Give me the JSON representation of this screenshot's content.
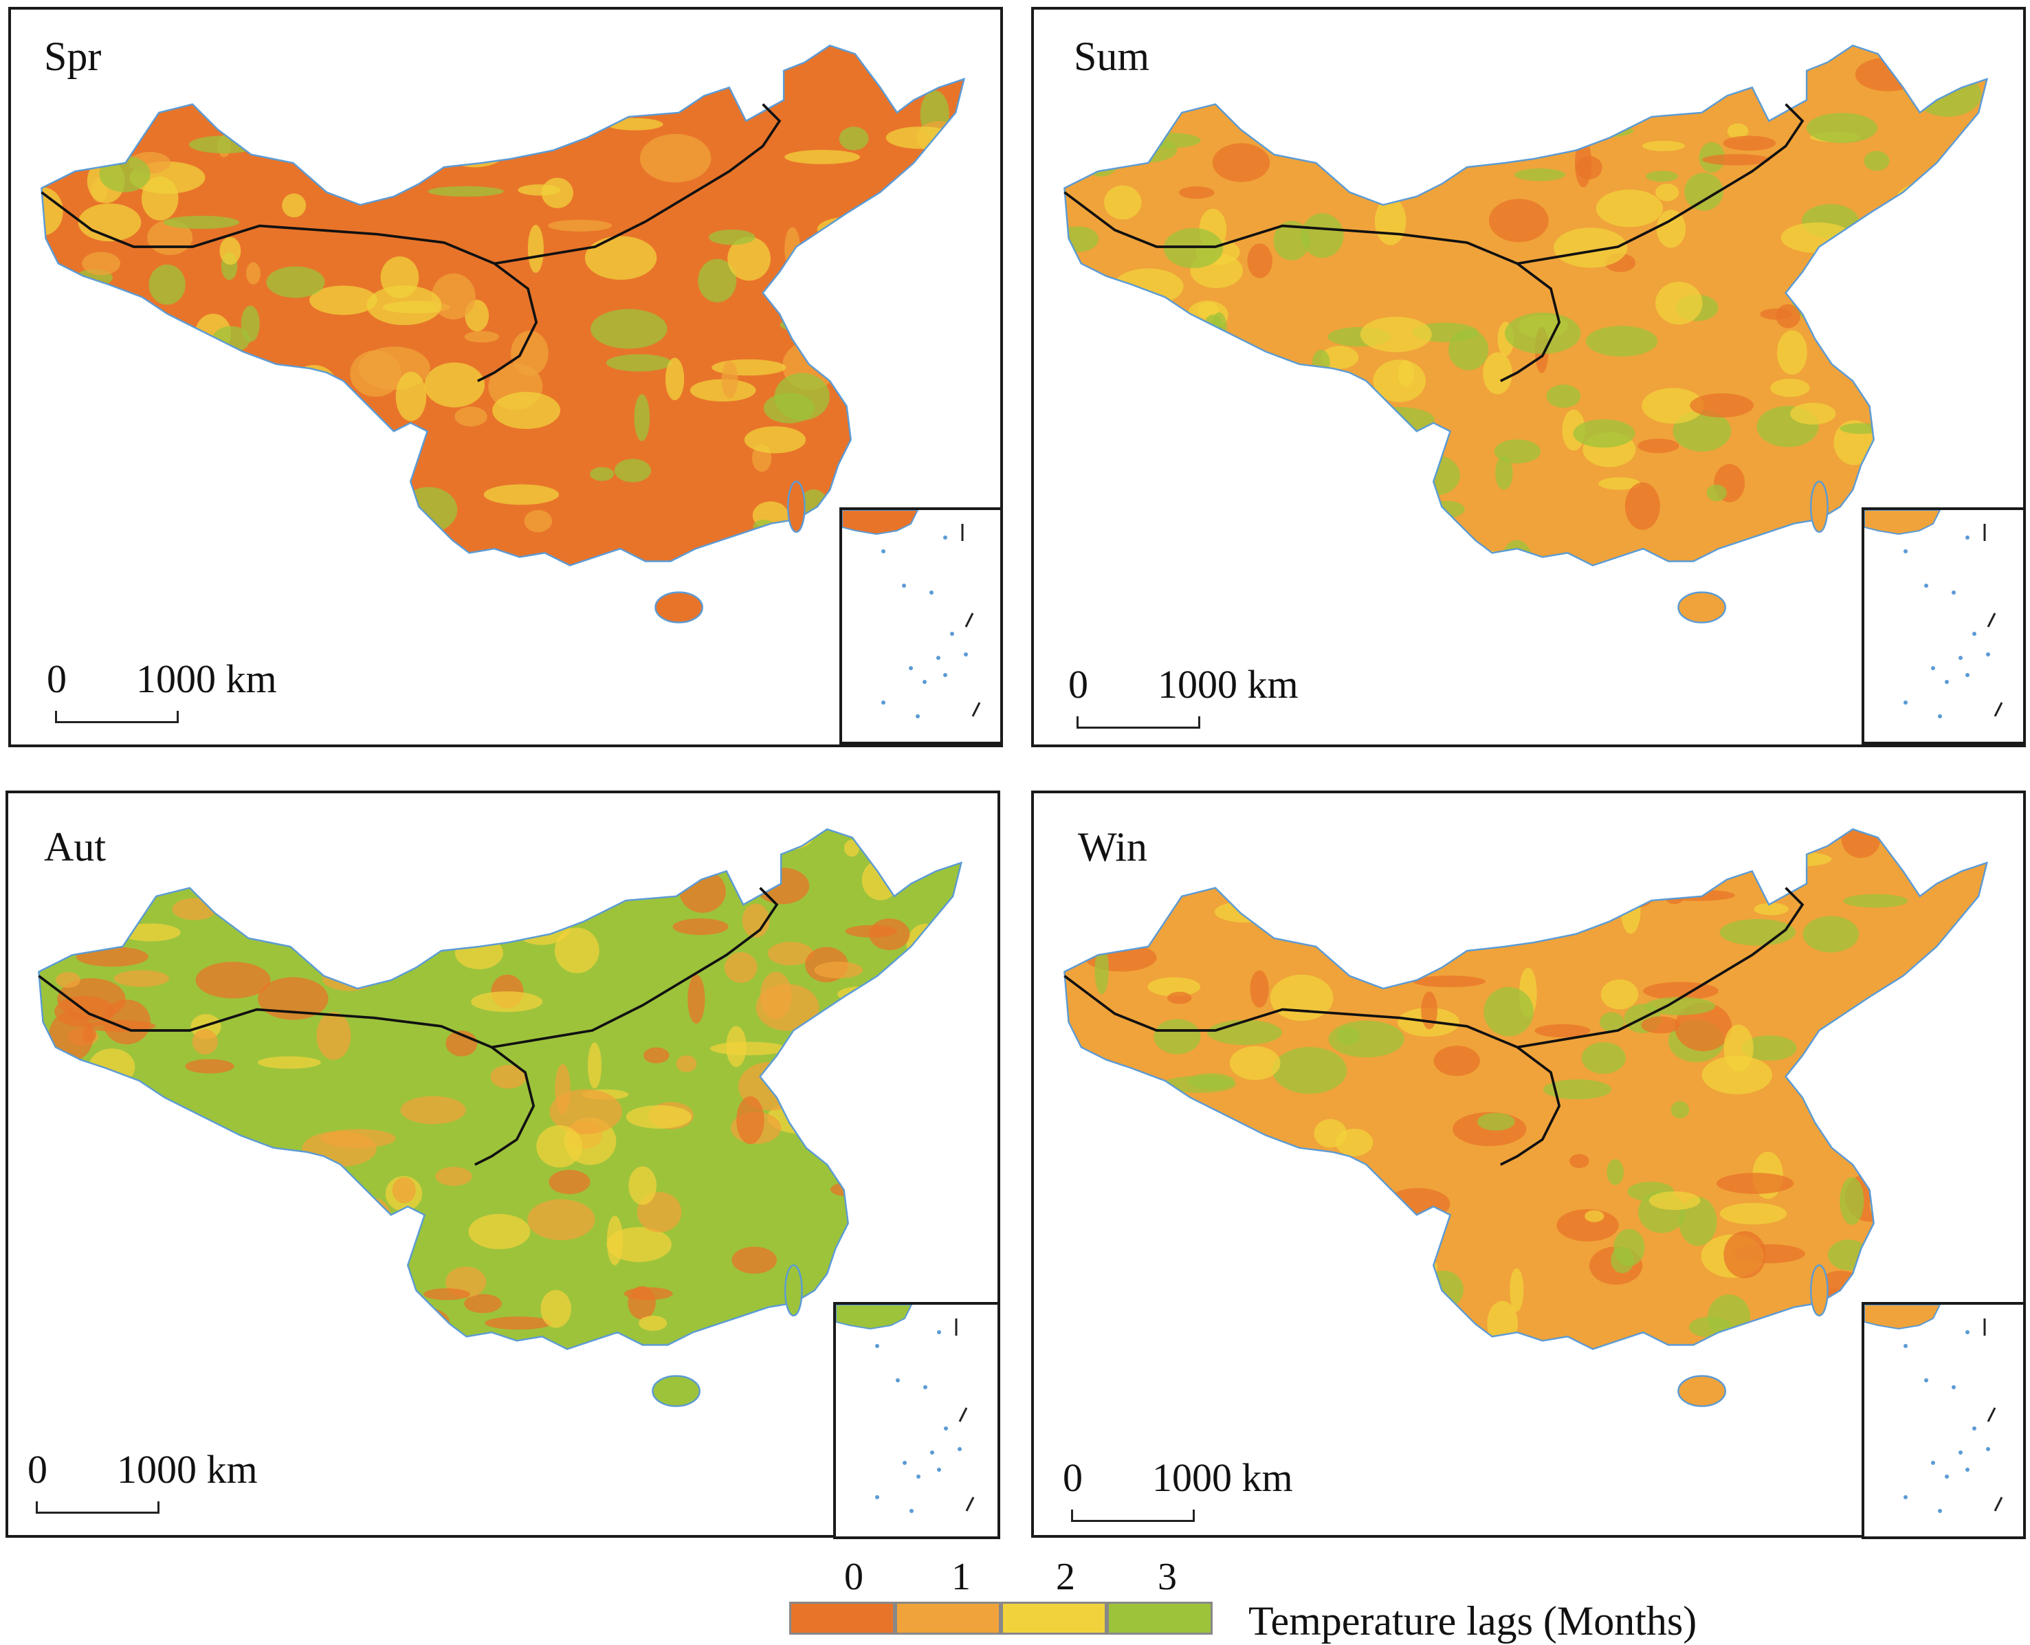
{
  "panels": [
    {
      "label": "Spr",
      "dominant": "#e8742a",
      "secondary": [
        "#f0a33a",
        "#f2d23c",
        "#9dc33b"
      ]
    },
    {
      "label": "Sum",
      "dominant": "#f0a33a",
      "secondary": [
        "#e8742a",
        "#f2d23c",
        "#9dc33b"
      ]
    },
    {
      "label": "Aut",
      "dominant": "#9dc33b",
      "secondary": [
        "#e8742a",
        "#f0a33a",
        "#f2d23c"
      ]
    },
    {
      "label": "Win",
      "dominant": "#f0a33a",
      "secondary": [
        "#e8742a",
        "#f2d23c",
        "#9dc33b"
      ]
    }
  ],
  "scalebar": {
    "start": "0",
    "end": "1000 km"
  },
  "legend": {
    "title": "Temperature  lags (Months)",
    "classes": [
      {
        "value": "0",
        "color": "#e8742a"
      },
      {
        "value": "1",
        "color": "#f0a33a"
      },
      {
        "value": "2",
        "color": "#f2d23c"
      },
      {
        "value": "3",
        "color": "#9dc33b"
      }
    ]
  },
  "colors": {
    "border": "#1a1a1a",
    "boundary_line": "#111111",
    "coast": "#5b9bd5"
  }
}
